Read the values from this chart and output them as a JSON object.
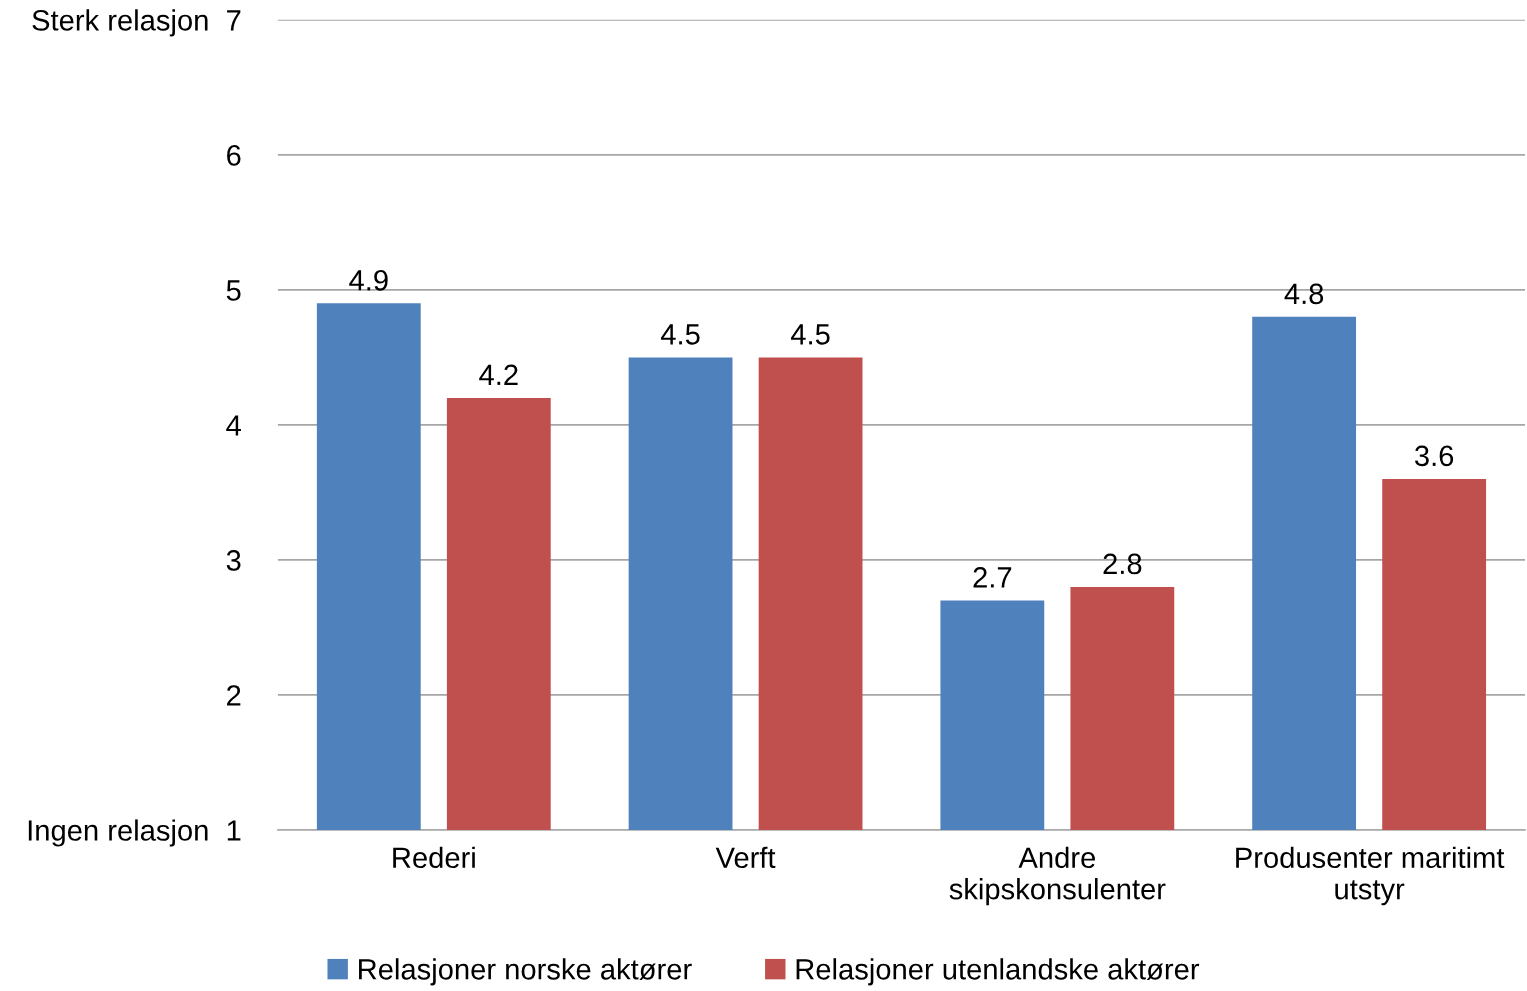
{
  "chart_data": {
    "type": "bar",
    "categories": [
      "Rederi",
      "Verft",
      "Andre\nskipskonsulenter",
      "Produsenter maritimt\nutstyr"
    ],
    "series": [
      {
        "name": "Relasjoner norske aktører",
        "color": "#4f81bd",
        "values": [
          4.9,
          4.5,
          2.7,
          4.8
        ]
      },
      {
        "name": "Relasjoner utenlandske aktører",
        "color": "#c0504d",
        "values": [
          4.2,
          4.5,
          2.8,
          3.6
        ]
      }
    ],
    "ylim": [
      1,
      7
    ],
    "yticks": [
      {
        "value": 1,
        "label": "Ingen relasjon  1"
      },
      2,
      3,
      4,
      5,
      6,
      {
        "value": 7,
        "label": "Sterk relasjon  7"
      }
    ],
    "data_labels": true,
    "grid": "y",
    "legend": "bottom"
  }
}
